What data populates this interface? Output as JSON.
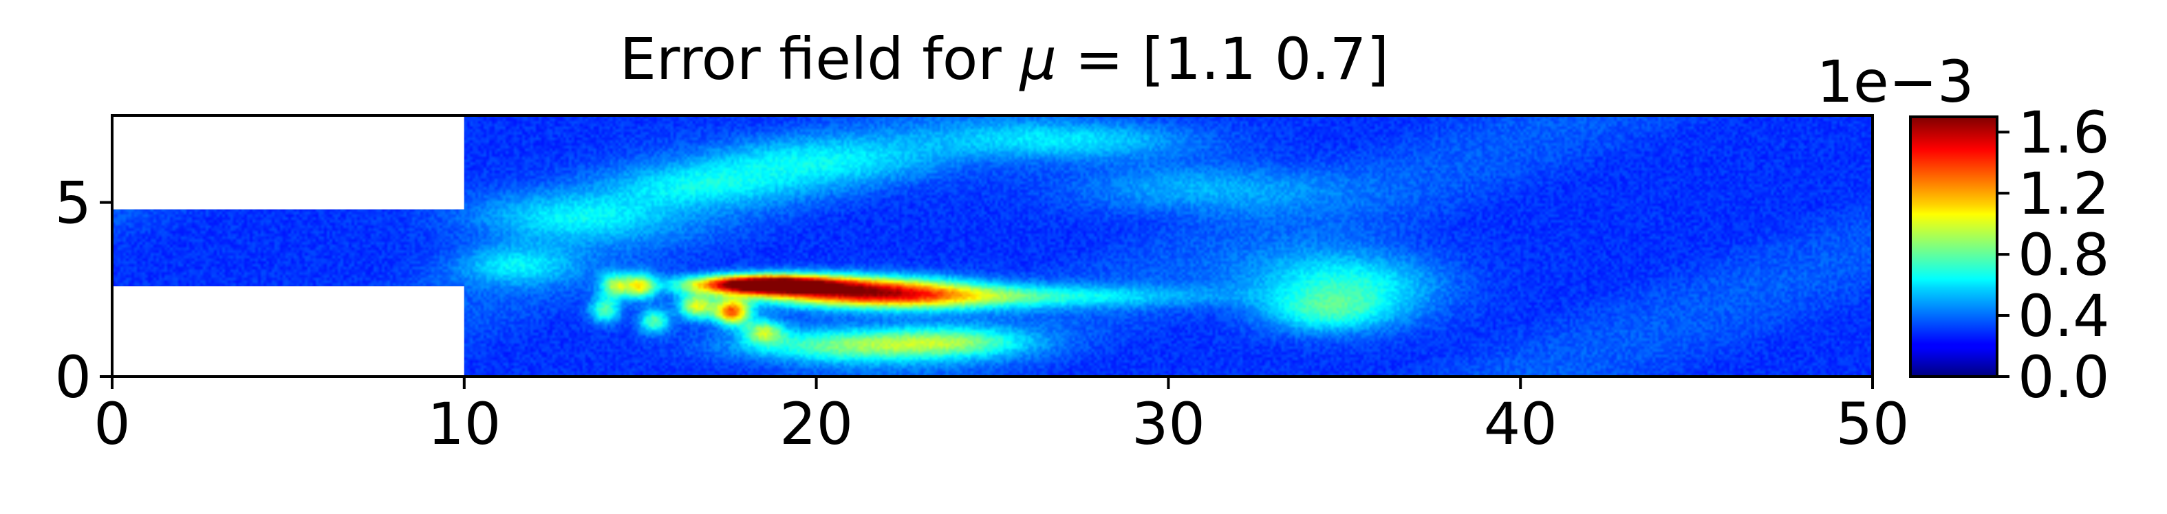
{
  "chart_data": {
    "type": "heatmap",
    "title_prefix": "Error field for ",
    "title_symbol": "μ",
    "title_suffix": " = [1.1 0.7]",
    "xlabel": "",
    "ylabel": "",
    "xlim": [
      0,
      50
    ],
    "ylim": [
      0,
      7.5
    ],
    "xticks": [
      0,
      10,
      20,
      30,
      40,
      50
    ],
    "yticks": [
      0,
      5
    ],
    "colormap": "jet",
    "colorbar": {
      "range": [
        0.0,
        0.0017
      ],
      "ticks": [
        0.0,
        0.4,
        0.8,
        1.2,
        1.6
      ],
      "tick_labels": [
        "0.0",
        "0.4",
        "0.8",
        "1.2",
        "1.6"
      ],
      "scale_label": "1e−3"
    },
    "domain": {
      "inlet_channel": {
        "x": [
          0,
          10
        ],
        "y": [
          2.6,
          4.8
        ]
      },
      "main_chamber": {
        "x": [
          10,
          50
        ],
        "y": [
          0,
          7.5
        ]
      }
    },
    "background_error": 0.12,
    "hotspots": [
      {
        "x": 18.5,
        "y": 2.65,
        "sx": 1.4,
        "sy": 0.18,
        "amp": 1.65
      },
      {
        "x": 20.5,
        "y": 2.5,
        "sx": 2.2,
        "sy": 0.28,
        "amp": 0.95
      },
      {
        "x": 22.5,
        "y": 2.3,
        "sx": 2.0,
        "sy": 0.3,
        "amp": 0.7
      },
      {
        "x": 17.6,
        "y": 1.85,
        "sx": 0.35,
        "sy": 0.25,
        "amp": 1.15
      },
      {
        "x": 16.6,
        "y": 2.0,
        "sx": 0.35,
        "sy": 0.25,
        "amp": 0.75
      },
      {
        "x": 15.0,
        "y": 2.6,
        "sx": 0.3,
        "sy": 0.25,
        "amp": 0.75
      },
      {
        "x": 14.3,
        "y": 2.6,
        "sx": 0.3,
        "sy": 0.25,
        "amp": 0.65
      },
      {
        "x": 14.0,
        "y": 1.9,
        "sx": 0.3,
        "sy": 0.25,
        "amp": 0.55
      },
      {
        "x": 15.4,
        "y": 1.6,
        "sx": 0.3,
        "sy": 0.25,
        "amp": 0.55
      },
      {
        "x": 18.5,
        "y": 1.3,
        "sx": 0.4,
        "sy": 0.25,
        "amp": 0.6
      },
      {
        "x": 21.0,
        "y": 0.9,
        "sx": 2.2,
        "sy": 0.35,
        "amp": 0.6
      },
      {
        "x": 24.0,
        "y": 1.0,
        "sx": 1.5,
        "sy": 0.3,
        "amp": 0.4
      },
      {
        "x": 26.0,
        "y": 2.3,
        "sx": 3.5,
        "sy": 0.22,
        "amp": 0.35
      },
      {
        "x": 35.0,
        "y": 2.6,
        "sx": 1.8,
        "sy": 0.7,
        "amp": 0.45
      },
      {
        "x": 34.5,
        "y": 1.8,
        "sx": 1.2,
        "sy": 0.4,
        "amp": 0.3
      },
      {
        "x": 13.0,
        "y": 4.6,
        "sx": 2.0,
        "sy": 0.5,
        "amp": 0.35
      },
      {
        "x": 16.5,
        "y": 5.5,
        "sx": 2.0,
        "sy": 0.45,
        "amp": 0.3
      },
      {
        "x": 20.0,
        "y": 6.2,
        "sx": 2.5,
        "sy": 0.5,
        "amp": 0.3
      },
      {
        "x": 27.0,
        "y": 6.8,
        "sx": 2.5,
        "sy": 0.4,
        "amp": 0.35
      },
      {
        "x": 31.0,
        "y": 5.4,
        "sx": 2.5,
        "sy": 0.5,
        "amp": 0.25
      },
      {
        "x": 11.5,
        "y": 3.2,
        "sx": 1.2,
        "sy": 0.4,
        "amp": 0.3
      }
    ]
  }
}
